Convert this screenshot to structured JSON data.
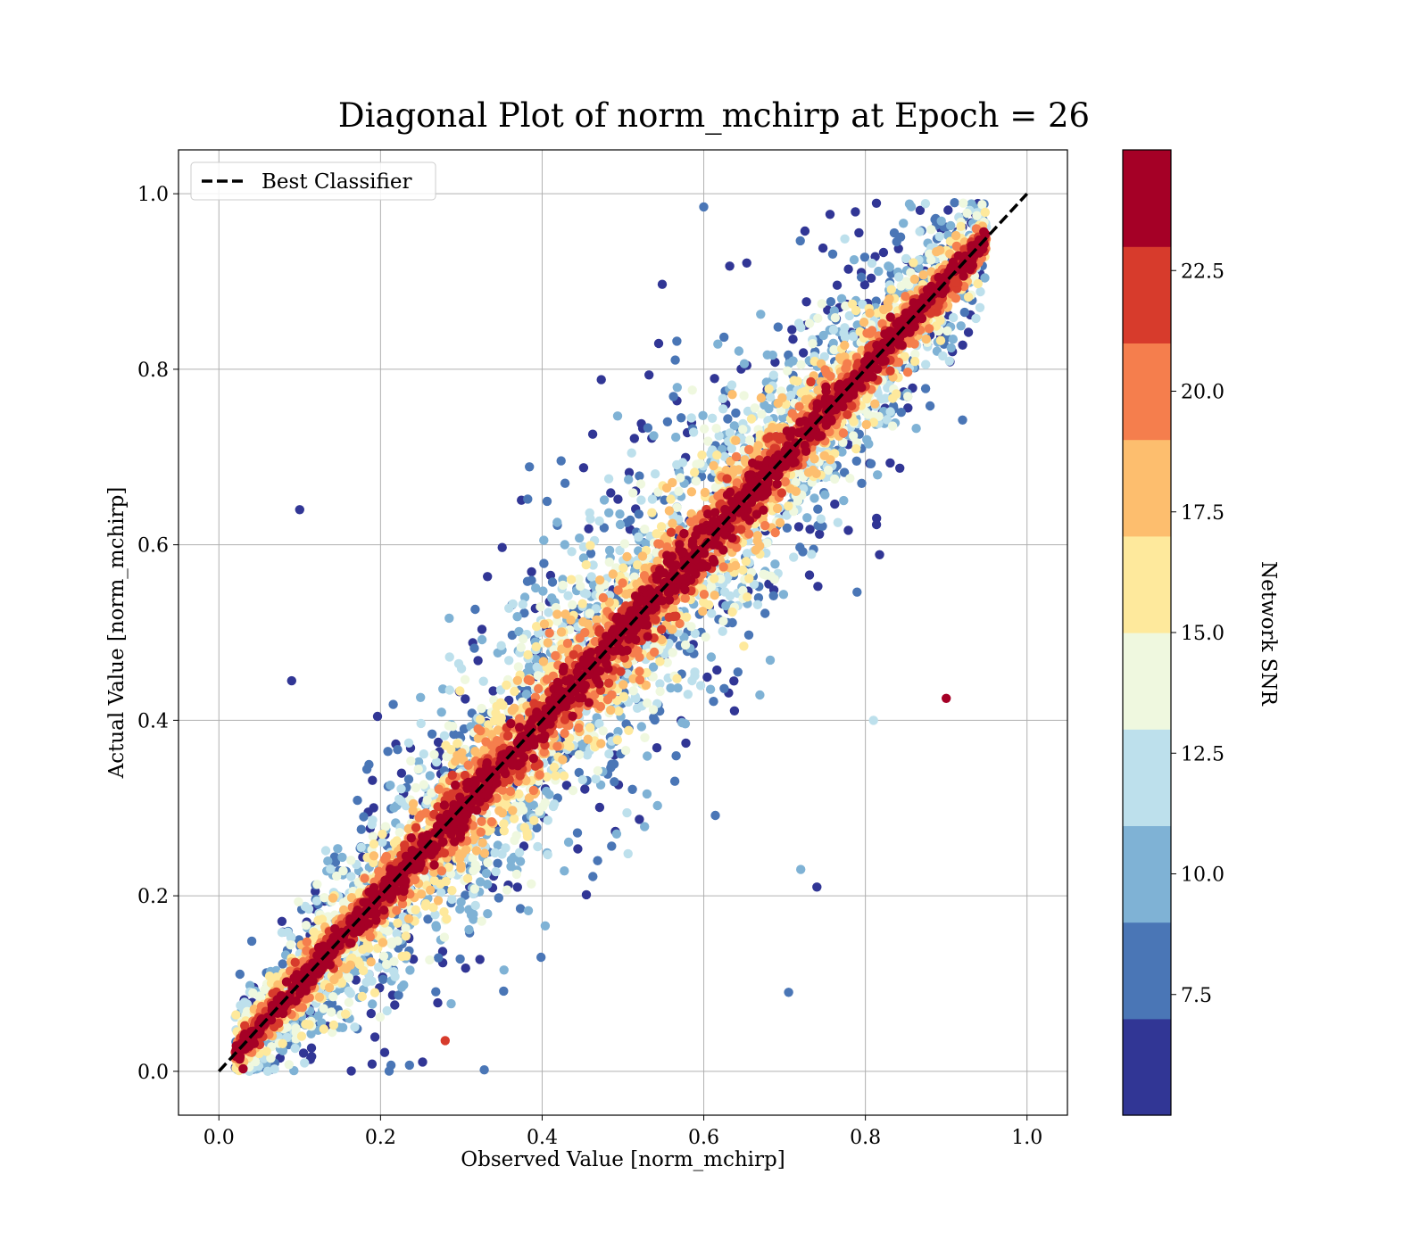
{
  "chart_data": {
    "type": "scatter",
    "title": "Diagonal Plot of norm_mchirp at Epoch = 26",
    "xlabel": "Observed Value [norm_mchirp]",
    "ylabel": "Actual Value [norm_mchirp]",
    "xlim": [
      -0.05,
      1.05
    ],
    "ylim": [
      -0.05,
      1.05
    ],
    "xticks": [
      "0.0",
      "0.2",
      "0.4",
      "0.6",
      "0.8",
      "1.0"
    ],
    "yticks": [
      "0.0",
      "0.2",
      "0.4",
      "0.6",
      "0.8",
      "1.0"
    ],
    "xtick_values": [
      0.0,
      0.2,
      0.4,
      0.6,
      0.8,
      1.0
    ],
    "ytick_values": [
      0.0,
      0.2,
      0.4,
      0.6,
      0.8,
      1.0
    ],
    "grid": true,
    "legend": {
      "position": "top-left",
      "entries": [
        "Best Classifier"
      ]
    },
    "reference_line": {
      "name": "Best Classifier",
      "from": [
        0.0,
        0.0
      ],
      "to": [
        1.0,
        1.0
      ],
      "style": "dashed",
      "color": "#000000"
    },
    "colorbar": {
      "label": "Network SNR",
      "range": [
        5.0,
        25.0
      ],
      "ticks": [
        "7.5",
        "10.0",
        "12.5",
        "15.0",
        "17.5",
        "20.0",
        "22.5"
      ],
      "tick_values": [
        7.5,
        10.0,
        12.5,
        15.0,
        17.5,
        20.0,
        22.5
      ],
      "colors": [
        "#313695",
        "#4a76b6",
        "#7fb2d5",
        "#bde0ec",
        "#eff8df",
        "#fee99c",
        "#fdbe6e",
        "#f57e4d",
        "#d73b2c",
        "#a50026"
      ]
    },
    "point_cloud": {
      "count": 9000,
      "description_free_params": {
        "seed": 26,
        "x_range": [
          0.02,
          0.95
        ]
      }
    },
    "highlighted_points": [
      {
        "x": 0.9,
        "y": 0.425,
        "snr": 24
      },
      {
        "x": 0.1,
        "y": 0.64,
        "snr": 5
      },
      {
        "x": 0.09,
        "y": 0.445,
        "snr": 5
      },
      {
        "x": 0.6,
        "y": 0.985,
        "snr": 8
      },
      {
        "x": 0.705,
        "y": 0.09,
        "snr": 8
      },
      {
        "x": 0.74,
        "y": 0.21,
        "snr": 5
      },
      {
        "x": 0.28,
        "y": 0.035,
        "snr": 22
      },
      {
        "x": 0.03,
        "y": 0.003,
        "snr": 24
      },
      {
        "x": 0.72,
        "y": 0.23,
        "snr": 10
      },
      {
        "x": 0.81,
        "y": 0.4,
        "snr": 11
      }
    ]
  }
}
